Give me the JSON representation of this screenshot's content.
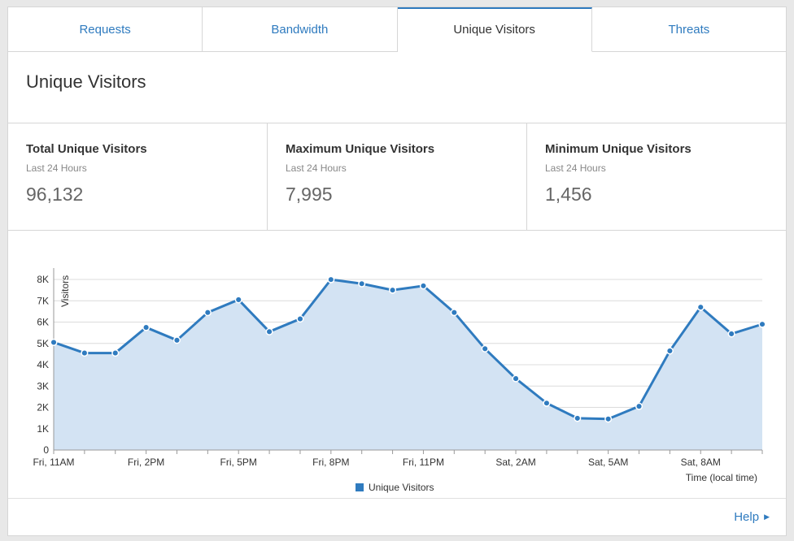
{
  "tabs": [
    {
      "label": "Requests",
      "active": false
    },
    {
      "label": "Bandwidth",
      "active": false
    },
    {
      "label": "Unique Visitors",
      "active": true
    },
    {
      "label": "Threats",
      "active": false
    }
  ],
  "page_title": "Unique Visitors",
  "stats": [
    {
      "title": "Total Unique Visitors",
      "sub": "Last 24 Hours",
      "value": "96,132"
    },
    {
      "title": "Maximum Unique Visitors",
      "sub": "Last 24 Hours",
      "value": "7,995"
    },
    {
      "title": "Minimum Unique Visitors",
      "sub": "Last 24 Hours",
      "value": "1,456"
    }
  ],
  "help": {
    "label": "Help",
    "arrow_icon": "caret-right-icon"
  },
  "colors": {
    "accent": "#2f7bbf",
    "area_fill": "#d3e3f3",
    "line": "#2f7bbf"
  },
  "chart_data": {
    "type": "area",
    "ylabel": "Visitors",
    "xlabel": "Time (local time)",
    "ylim": [
      0,
      8000
    ],
    "y_ticks": [
      "0",
      "1K",
      "2K",
      "3K",
      "4K",
      "5K",
      "6K",
      "7K",
      "8K"
    ],
    "x_tick_labels": [
      "Fri, 11AM",
      "Fri, 2PM",
      "Fri, 5PM",
      "Fri, 8PM",
      "Fri, 11PM",
      "Sat, 2AM",
      "Sat, 5AM",
      "Sat, 8AM"
    ],
    "grid": true,
    "legend_position": "bottom",
    "series": [
      {
        "name": "Unique Visitors",
        "values": [
          5050,
          4550,
          4550,
          5750,
          5150,
          6450,
          7050,
          5550,
          6150,
          7995,
          7800,
          7500,
          7700,
          6450,
          4750,
          3350,
          2200,
          1490,
          1456,
          2050,
          4650,
          6700,
          5450,
          5900
        ]
      }
    ]
  }
}
